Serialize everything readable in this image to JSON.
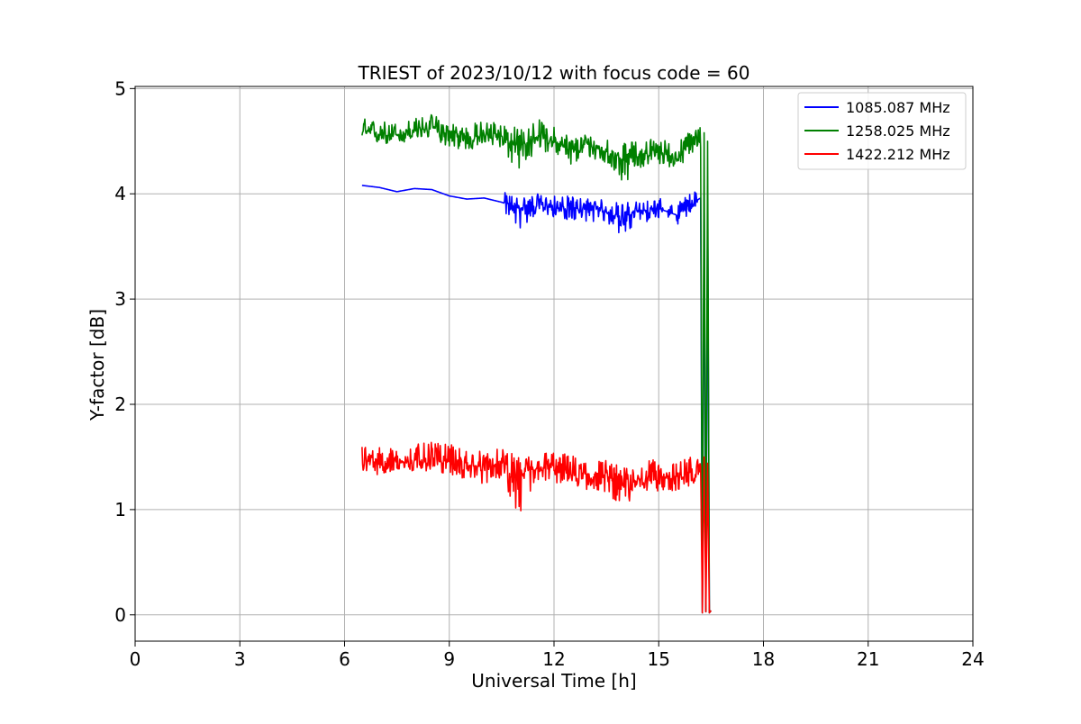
{
  "chart_data": {
    "type": "line",
    "title": "TRIEST of 2023/10/12 with focus code = 60",
    "xlabel": "Universal Time [h]",
    "ylabel": "Y-factor [dB]",
    "xlim": [
      0,
      24
    ],
    "ylim": [
      -0.25,
      5.02
    ],
    "xticks": [
      0,
      3,
      6,
      9,
      12,
      15,
      18,
      21,
      24
    ],
    "xtick_labels": [
      "0",
      "3",
      "6",
      "9",
      "12",
      "15",
      "18",
      "21",
      "24"
    ],
    "yticks": [
      0,
      1,
      2,
      3,
      4,
      5
    ],
    "ytick_labels": [
      "0",
      "1",
      "2",
      "3",
      "4",
      "5"
    ],
    "grid": true,
    "legend_position": "top-right",
    "series": [
      {
        "name": "1085.087 MHz",
        "color": "#0000ff",
        "x": [
          6.5,
          7.0,
          7.5,
          8.0,
          8.5,
          9.0,
          9.5,
          10.0,
          10.5,
          11.0,
          11.5,
          12.0,
          12.5,
          13.0,
          13.5,
          14.0,
          14.5,
          15.0,
          15.5,
          16.0,
          16.2,
          16.25,
          16.3,
          16.35,
          16.4,
          16.45,
          16.5
        ],
        "y": [
          4.08,
          4.06,
          4.02,
          4.05,
          4.04,
          3.98,
          3.95,
          3.96,
          3.92,
          3.86,
          3.9,
          3.87,
          3.85,
          3.86,
          3.83,
          3.78,
          3.84,
          3.86,
          3.8,
          3.92,
          3.96,
          0.02,
          4.0,
          0.03,
          3.94,
          0.02,
          0.04
        ],
        "low": [
          4.0,
          3.98,
          3.94,
          3.97,
          3.96,
          3.89,
          3.86,
          3.87,
          3.84,
          3.65,
          3.8,
          3.78,
          3.74,
          3.74,
          3.72,
          3.58,
          3.72,
          3.76,
          3.7,
          3.82,
          3.88,
          0.0,
          3.9,
          0.0,
          3.86,
          0.0,
          0.0
        ],
        "high": [
          4.18,
          4.16,
          4.12,
          4.14,
          4.12,
          4.06,
          4.04,
          4.06,
          4.02,
          3.98,
          4.0,
          3.98,
          3.98,
          3.96,
          3.94,
          3.92,
          3.94,
          3.96,
          3.9,
          4.04,
          4.06,
          0.05,
          4.1,
          0.06,
          4.04,
          0.05,
          0.07
        ]
      },
      {
        "name": "1258.025 MHz",
        "color": "#008000",
        "x": [
          6.5,
          7.0,
          7.5,
          8.0,
          8.5,
          9.0,
          9.5,
          10.0,
          10.5,
          11.0,
          11.5,
          12.0,
          12.5,
          13.0,
          13.5,
          14.0,
          14.5,
          15.0,
          15.5,
          16.0,
          16.2,
          16.25,
          16.3,
          16.35,
          16.4,
          16.45,
          16.5
        ],
        "y": [
          4.58,
          4.57,
          4.56,
          4.6,
          4.63,
          4.56,
          4.52,
          4.56,
          4.55,
          4.43,
          4.55,
          4.5,
          4.4,
          4.46,
          4.4,
          4.32,
          4.38,
          4.4,
          4.34,
          4.48,
          4.52,
          0.02,
          4.58,
          0.03,
          4.5,
          0.02,
          0.04
        ],
        "low": [
          4.48,
          4.47,
          4.46,
          4.5,
          4.53,
          4.44,
          4.4,
          4.45,
          4.44,
          4.15,
          4.42,
          4.38,
          4.26,
          4.34,
          4.27,
          4.1,
          4.25,
          4.28,
          4.24,
          4.36,
          4.42,
          0.0,
          4.48,
          0.0,
          4.4,
          0.0,
          0.0
        ],
        "high": [
          4.72,
          4.7,
          4.68,
          4.72,
          4.76,
          4.7,
          4.66,
          4.7,
          4.7,
          4.62,
          4.72,
          4.64,
          4.56,
          4.58,
          4.54,
          4.48,
          4.52,
          4.54,
          4.48,
          4.64,
          4.66,
          0.05,
          4.66,
          0.06,
          4.6,
          0.05,
          0.07
        ]
      },
      {
        "name": "1422.212 MHz",
        "color": "#ff0000",
        "x": [
          6.5,
          7.0,
          7.5,
          8.0,
          8.5,
          9.0,
          9.5,
          10.0,
          10.5,
          11.0,
          11.5,
          12.0,
          12.5,
          13.0,
          13.5,
          14.0,
          14.5,
          15.0,
          15.5,
          16.0,
          16.2,
          16.25,
          16.3,
          16.35,
          16.4,
          16.45,
          16.5
        ],
        "y": [
          1.48,
          1.46,
          1.44,
          1.47,
          1.48,
          1.46,
          1.42,
          1.4,
          1.44,
          1.3,
          1.38,
          1.4,
          1.36,
          1.33,
          1.32,
          1.22,
          1.3,
          1.32,
          1.28,
          1.38,
          1.46,
          0.02,
          1.5,
          0.03,
          1.44,
          0.02,
          0.04
        ],
        "low": [
          1.35,
          1.33,
          1.32,
          1.35,
          1.36,
          1.33,
          1.28,
          1.24,
          1.3,
          0.93,
          1.24,
          1.26,
          1.2,
          1.18,
          1.16,
          1.01,
          1.14,
          1.18,
          1.12,
          1.24,
          1.36,
          0.0,
          1.4,
          0.0,
          1.36,
          0.0,
          0.0
        ],
        "high": [
          1.64,
          1.6,
          1.58,
          1.62,
          1.64,
          1.62,
          1.58,
          1.56,
          1.58,
          1.5,
          1.56,
          1.56,
          1.52,
          1.48,
          1.48,
          1.4,
          1.46,
          1.48,
          1.44,
          1.56,
          1.6,
          0.05,
          1.6,
          0.06,
          1.54,
          0.05,
          0.07
        ]
      }
    ]
  }
}
